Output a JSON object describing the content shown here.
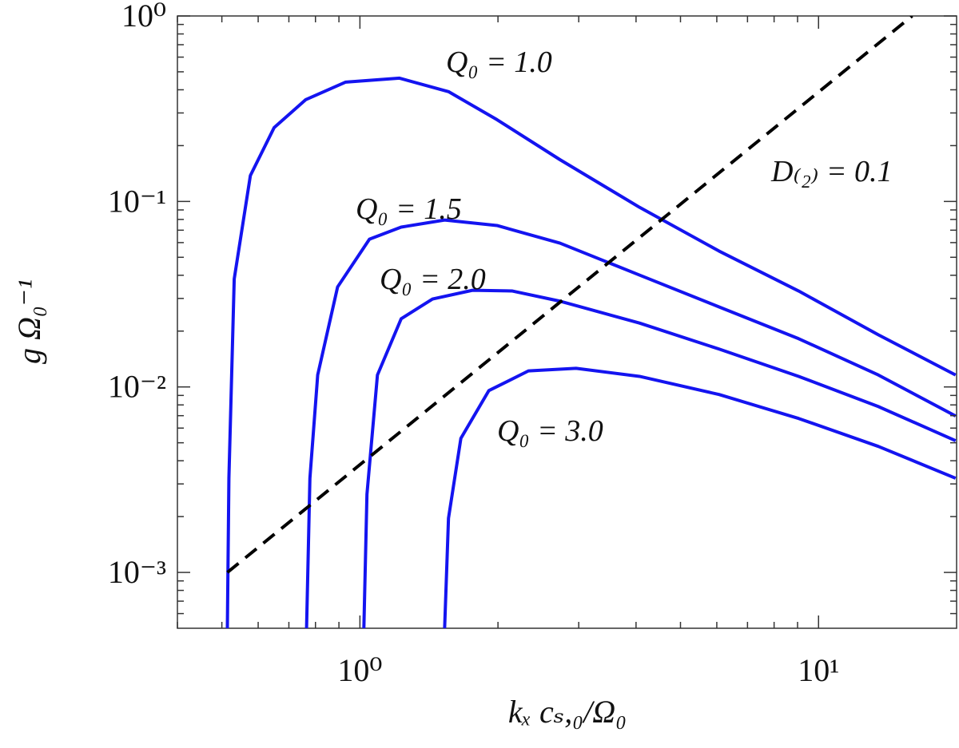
{
  "chart_data": {
    "type": "line",
    "xscale": "log",
    "yscale": "log",
    "xlabel": "kₓ cₛ,₀/Ω₀",
    "ylabel": "g Ω₀⁻¹",
    "xlim": [
      0.4,
      20
    ],
    "ylim": [
      0.0005,
      1
    ],
    "xticks": [
      {
        "value": 1,
        "label": "10⁰"
      },
      {
        "value": 10,
        "label": "10¹"
      }
    ],
    "yticks": [
      {
        "value": 0.001,
        "label": "10⁻³"
      },
      {
        "value": 0.01,
        "label": "10⁻²"
      },
      {
        "value": 0.1,
        "label": "10⁻¹"
      },
      {
        "value": 1,
        "label": "10⁰"
      }
    ],
    "xminorticks": [
      0.4,
      0.5,
      0.6,
      0.7,
      0.8,
      0.9,
      2,
      3,
      4,
      5,
      6,
      7,
      8,
      9
    ],
    "yminorticks": [
      0.0006,
      0.0007,
      0.0008,
      0.0009,
      0.002,
      0.003,
      0.004,
      0.005,
      0.006,
      0.007,
      0.008,
      0.009,
      0.02,
      0.03,
      0.04,
      0.05,
      0.06,
      0.07,
      0.08,
      0.09,
      0.2,
      0.3,
      0.4,
      0.5,
      0.6,
      0.7,
      0.8,
      0.9
    ],
    "grid": false,
    "series": [
      {
        "color": "#1414f0",
        "style": "solid",
        "x": [
          0.514,
          0.518,
          0.532,
          0.577,
          0.65,
          0.762,
          0.931,
          1.22,
          1.56,
          1.99,
          2.73,
          4.07,
          6.07,
          9.05,
          13.5,
          19.9
        ],
        "values": [
          0.0005,
          0.00322,
          0.0382,
          0.138,
          0.25,
          0.354,
          0.44,
          0.462,
          0.391,
          0.276,
          0.168,
          0.093,
          0.054,
          0.0329,
          0.0191,
          0.0116
        ]
      },
      {
        "color": "#1414f0",
        "style": "solid",
        "x": [
          0.765,
          0.778,
          0.809,
          0.894,
          1.049,
          1.23,
          1.53,
          1.99,
          2.73,
          4.07,
          6.07,
          9.05,
          13.5,
          19.9
        ],
        "values": [
          0.0005,
          0.00322,
          0.0116,
          0.0346,
          0.0626,
          0.0727,
          0.0794,
          0.0742,
          0.0596,
          0.0401,
          0.027,
          0.0182,
          0.0116,
          0.00697
        ]
      },
      {
        "color": "#1414f0",
        "style": "solid",
        "x": [
          1.02,
          1.036,
          1.092,
          1.23,
          1.44,
          1.76,
          2.15,
          2.73,
          4.07,
          6.07,
          9.05,
          13.5,
          19.9
        ],
        "values": [
          0.0005,
          0.00264,
          0.0116,
          0.0233,
          0.0298,
          0.0332,
          0.0329,
          0.029,
          0.0221,
          0.016,
          0.0114,
          0.00784,
          0.00513
        ]
      },
      {
        "color": "#1414f0",
        "style": "solid",
        "x": [
          1.53,
          1.56,
          1.66,
          1.91,
          2.33,
          2.96,
          4.07,
          6.07,
          9.05,
          13.5,
          19.9
        ],
        "values": [
          0.0005,
          0.00196,
          0.00528,
          0.00955,
          0.0122,
          0.0126,
          0.0114,
          0.0091,
          0.00676,
          0.00478,
          0.00322
        ]
      },
      {
        "color": "#000000",
        "style": "dashed",
        "x": [
          0.514,
          16.0
        ],
        "values": [
          0.001,
          1.0
        ]
      }
    ],
    "annotations": [
      "Q₀ = 1.0",
      "Q₀ = 1.5",
      "Q₀ = 2.0",
      "Q₀ = 3.0",
      "D₍₂₎ = 0.1"
    ]
  }
}
